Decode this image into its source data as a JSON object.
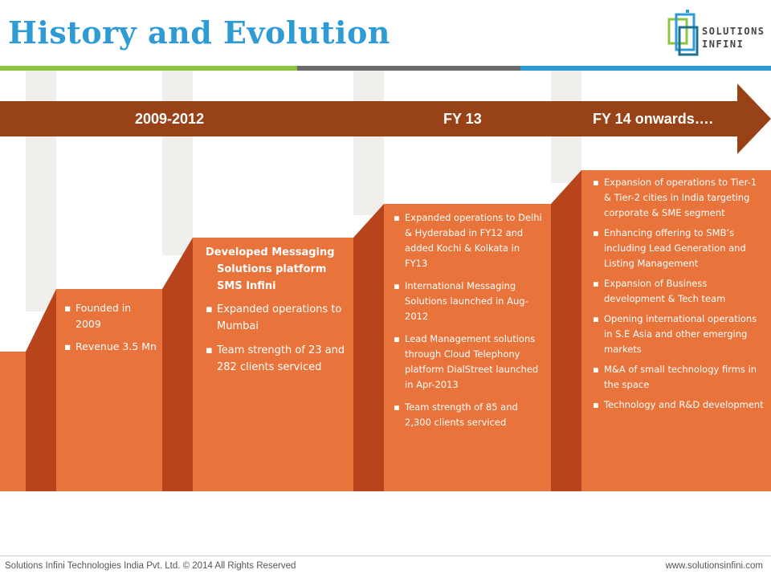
{
  "slide": {
    "title": "History and Evolution"
  },
  "logo": {
    "line1": "SOLUTIONS",
    "line2": "INFINI",
    "icon": "solutions-infini-logo-icon"
  },
  "colors": {
    "title": "#2f9bd4",
    "arrow": "#984217",
    "step": "#e8733b",
    "riser": "#b8441b",
    "bar_green": "#8cc540",
    "bar_gray": "#6a6a6a",
    "bar_blue": "#2f9bd4"
  },
  "timeline": {
    "labels": [
      "2009-2012",
      "FY 13",
      "FY 14 onwards…."
    ]
  },
  "stages": [
    {
      "bullets": [
        "Founded in 2009",
        "Revenue 3.5 Mn"
      ]
    },
    {
      "heading": "Developed  Messaging Solutions platform SMS Infini",
      "bullets": [
        "Expanded operations to Mumbai",
        "Team strength of 23 and 282 clients serviced"
      ]
    },
    {
      "bullets": [
        "Expanded operations to Delhi & Hyderabad in FY12 and added Kochi & Kolkata in FY13",
        "International Messaging Solutions launched in Aug-2012",
        "Lead Management solutions through Cloud Telephony platform DialStreet launched in Apr-2013",
        "Team strength of 85 and 2,300 clients serviced"
      ]
    },
    {
      "bullets": [
        "Expansion of operations to Tier-1 & Tier-2 cities in India targeting corporate & SME segment",
        "Enhancing offering to SMB’s including Lead Generation and Listing Management",
        "Expansion of Business development & Tech team",
        "Opening international operations in S.E Asia and other emerging markets",
        "M&A of small technology firms in the space",
        "Technology and R&D development"
      ]
    }
  ],
  "footer": {
    "left": "Solutions Infini Technologies India Pvt. Ltd. © 2014  All Rights Reserved",
    "right": "www.solutionsinfini.com"
  }
}
